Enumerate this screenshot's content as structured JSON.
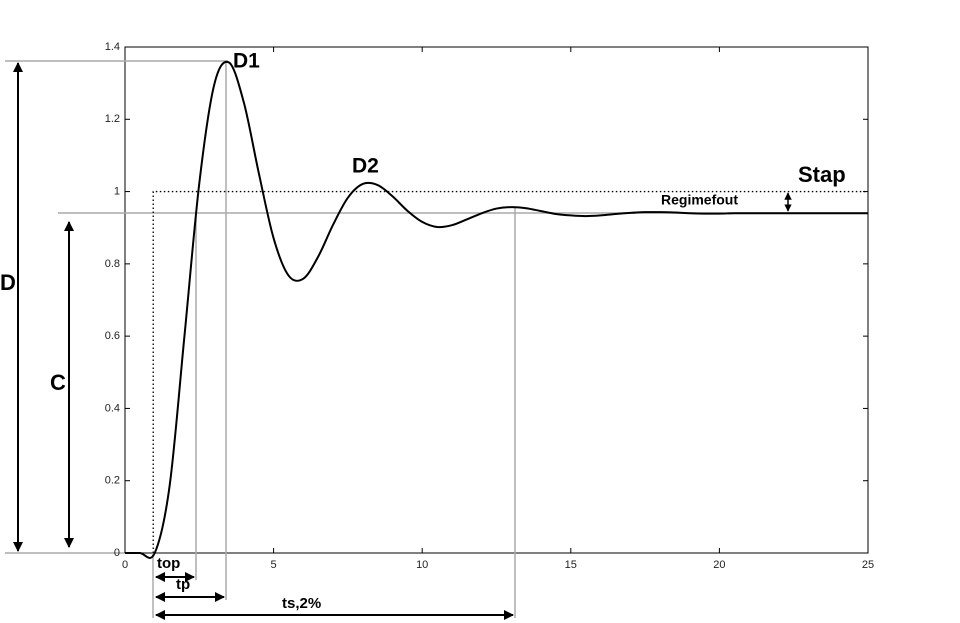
{
  "chart_data": {
    "type": "line",
    "x": [
      0,
      0.5,
      1,
      1.5,
      2,
      2.5,
      3,
      3.5,
      4,
      4.5,
      5,
      5.5,
      6,
      6.5,
      7,
      7.5,
      8,
      8.5,
      9,
      9.5,
      10,
      10.5,
      11,
      11.5,
      12,
      12.5,
      13,
      13.5,
      14,
      14.5,
      15,
      15.5,
      16,
      16.5,
      17,
      17.5,
      18,
      18.5,
      19,
      19.5,
      20,
      20.5,
      21,
      21.5,
      22,
      22.5,
      23,
      23.5,
      24,
      24.5,
      25
    ],
    "series": [
      {
        "color": "#000000",
        "values": [
          0,
          0,
          0,
          0.185,
          0.6,
          1.023,
          1.295,
          1.357,
          1.246,
          1.052,
          0.871,
          0.768,
          0.759,
          0.82,
          0.908,
          0.983,
          1.021,
          1.018,
          0.987,
          0.947,
          0.916,
          0.902,
          0.907,
          0.923,
          0.94,
          0.953,
          0.957,
          0.954,
          0.946,
          0.938,
          0.934,
          0.932,
          0.934,
          0.938,
          0.941,
          0.943,
          0.943,
          0.942,
          0.94,
          0.939,
          0.939,
          0.94,
          0.94,
          0.94,
          0.94,
          0.94,
          0.94,
          0.94,
          0.94,
          0.94,
          0.94
        ]
      },
      {
        "color": "#000000",
        "dotted": true,
        "x": [
          0.95,
          0.95,
          25
        ],
        "values": [
          0,
          1,
          1
        ]
      }
    ],
    "xlim": [
      0,
      25
    ],
    "xticks": [
      0,
      5,
      10,
      15,
      20,
      25
    ],
    "ylim": [
      0,
      1.4
    ],
    "yticks": [
      0,
      0.2,
      0.4,
      0.6,
      0.8,
      1,
      1.2,
      1.4
    ],
    "grid": false,
    "annotations": [
      "D1",
      "D2",
      "Stap",
      "Regimefout",
      "D",
      "C",
      "top",
      "tp",
      "ts,2%"
    ]
  }
}
